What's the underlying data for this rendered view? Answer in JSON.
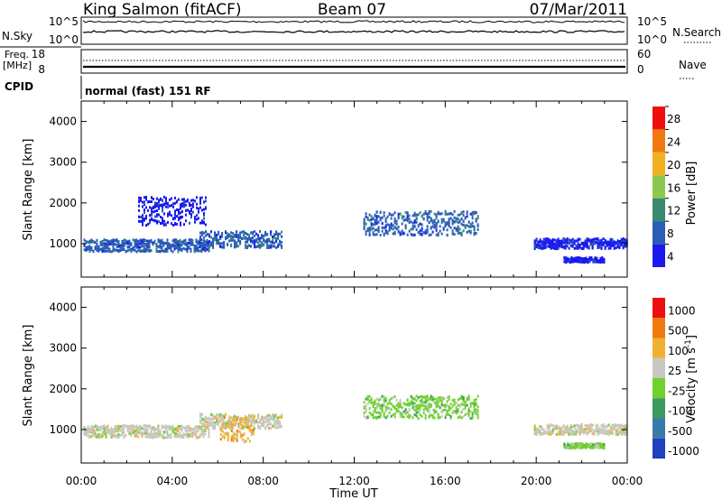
{
  "header": {
    "station": "King Salmon (fitACF)",
    "beam": "Beam 07",
    "date": "07/Mar/2011"
  },
  "status_panels": {
    "nsky_label": "N.Sky",
    "nsearch_label": "N.Search",
    "nsky_ticks": [
      "10^5",
      "10^0"
    ],
    "nsearch_ticks": [
      "10^5",
      "10^0"
    ],
    "freq_label_1": "Freq.",
    "freq_label_2": "[MHz]",
    "freq_ticks": [
      "18",
      "8"
    ],
    "nave_label": "Nave",
    "nave_ticks": [
      "60",
      "0"
    ],
    "cpid_label": "CPID",
    "cpid_text": "normal (fast) 151 RF"
  },
  "chart_data": [
    {
      "type": "heatmap",
      "panel": "power",
      "ylabel": "Slant Range [km]",
      "ylim": [
        180,
        4500
      ],
      "yticks": [
        1000,
        2000,
        3000,
        4000
      ],
      "xlim": [
        0,
        24
      ],
      "colorbar_label": "Power [dB]",
      "colorbar_ticks": [
        "4",
        "8",
        "12",
        "16",
        "20",
        "24",
        "28"
      ],
      "colors": [
        "#1a1aee",
        "#2a5db8",
        "#3a8a70",
        "#8cc850",
        "#f0b020",
        "#f07a10",
        "#ee1010"
      ],
      "echo_regions": [
        {
          "t_start": 0.1,
          "t_end": 5.6,
          "r_center": 950,
          "r_width": 300,
          "level": 1
        },
        {
          "t_start": 2.5,
          "t_end": 5.5,
          "r_center": 1800,
          "r_width": 700,
          "level": 0
        },
        {
          "t_start": 5.2,
          "t_end": 8.8,
          "r_center": 1100,
          "r_width": 400,
          "level": 1
        },
        {
          "t_start": 12.4,
          "t_end": 17.4,
          "r_center": 1500,
          "r_width": 600,
          "level": 1
        },
        {
          "t_start": 19.9,
          "t_end": 24.0,
          "r_center": 1000,
          "r_width": 250,
          "level": 0
        },
        {
          "t_start": 21.2,
          "t_end": 23.0,
          "r_center": 600,
          "r_width": 120,
          "level": 0
        }
      ]
    },
    {
      "type": "heatmap",
      "panel": "velocity",
      "ylabel": "Slant Range [km]",
      "xlabel": "Time UT",
      "ylim": [
        180,
        4500
      ],
      "yticks": [
        1000,
        2000,
        3000,
        4000
      ],
      "xlim": [
        0,
        24
      ],
      "xticks": [
        "00:00",
        "04:00",
        "08:00",
        "12:00",
        "16:00",
        "20:00",
        "00:00"
      ],
      "colorbar_label": "Velocity [m s",
      "colorbar_label_sup": "-1",
      "colorbar_label_end": "]",
      "colorbar_ticks": [
        "1000",
        "500",
        "100",
        "25",
        "-25",
        "-100",
        "-500",
        "-1000"
      ],
      "colors": [
        "#2040c0",
        "#3a7aa8",
        "#3a9a60",
        "#70d030",
        "#c8c8c0",
        "#f0b030",
        "#f07a10",
        "#ee1010"
      ],
      "echo_regions": [
        {
          "t_start": 0.1,
          "t_end": 5.6,
          "r_center": 950,
          "r_width": 300,
          "level": 4
        },
        {
          "t_start": 5.2,
          "t_end": 8.8,
          "r_center": 1200,
          "r_width": 350,
          "level": 4
        },
        {
          "t_start": 6.1,
          "t_end": 7.6,
          "r_center": 1000,
          "r_width": 600,
          "level": 5
        },
        {
          "t_start": 12.4,
          "t_end": 17.4,
          "r_center": 1550,
          "r_width": 550,
          "level": 3
        },
        {
          "t_start": 19.9,
          "t_end": 24.0,
          "r_center": 1000,
          "r_width": 250,
          "level": 4
        },
        {
          "t_start": 21.2,
          "t_end": 23.0,
          "r_center": 600,
          "r_width": 120,
          "level": 3
        }
      ]
    }
  ]
}
